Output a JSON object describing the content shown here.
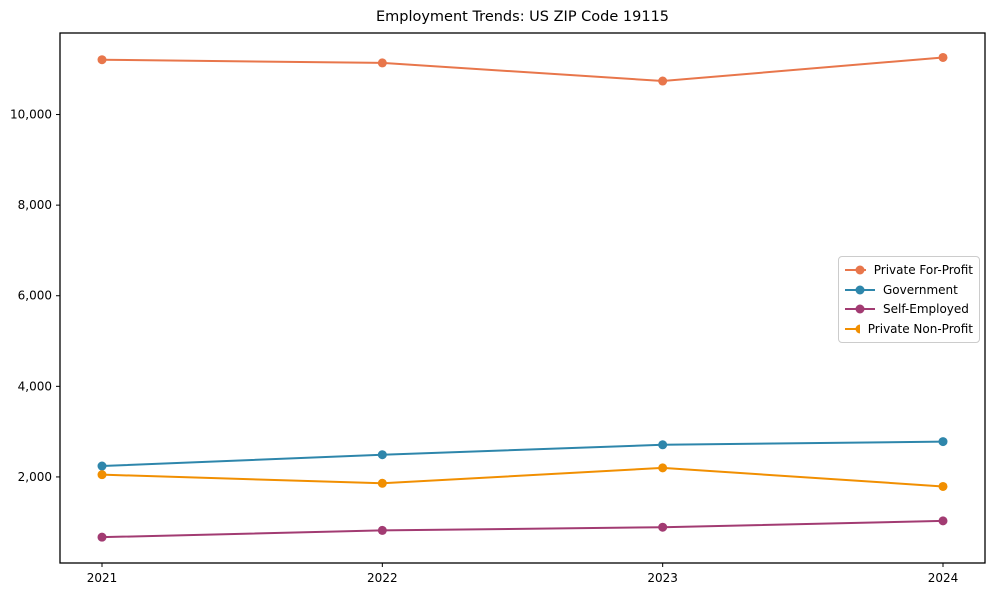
{
  "chart_data": {
    "type": "line",
    "title": "Employment Trends: US ZIP Code 19115",
    "xlabel": "",
    "ylabel": "",
    "categories": [
      "2021",
      "2022",
      "2023",
      "2024"
    ],
    "series": [
      {
        "name": "Private For-Profit",
        "color": "#E8764B",
        "values": [
          11210,
          11140,
          10740,
          11260
        ]
      },
      {
        "name": "Government",
        "color": "#2E86AB",
        "values": [
          2240,
          2490,
          2710,
          2780
        ]
      },
      {
        "name": "Self-Employed",
        "color": "#A23B72",
        "values": [
          670,
          820,
          890,
          1030
        ]
      },
      {
        "name": "Private Non-Profit",
        "color": "#F18F01",
        "values": [
          2050,
          1860,
          2200,
          1790
        ]
      }
    ],
    "ylim": [
      100,
      11800
    ],
    "yticks": [
      2000,
      4000,
      6000,
      8000,
      10000
    ],
    "ytick_labels": [
      "2,000",
      "4,000",
      "6,000",
      "8,000",
      "10,000"
    ],
    "grid": false,
    "legend_position": "right-middle",
    "axis_color": "#000000",
    "background_color": "#ffffff"
  }
}
